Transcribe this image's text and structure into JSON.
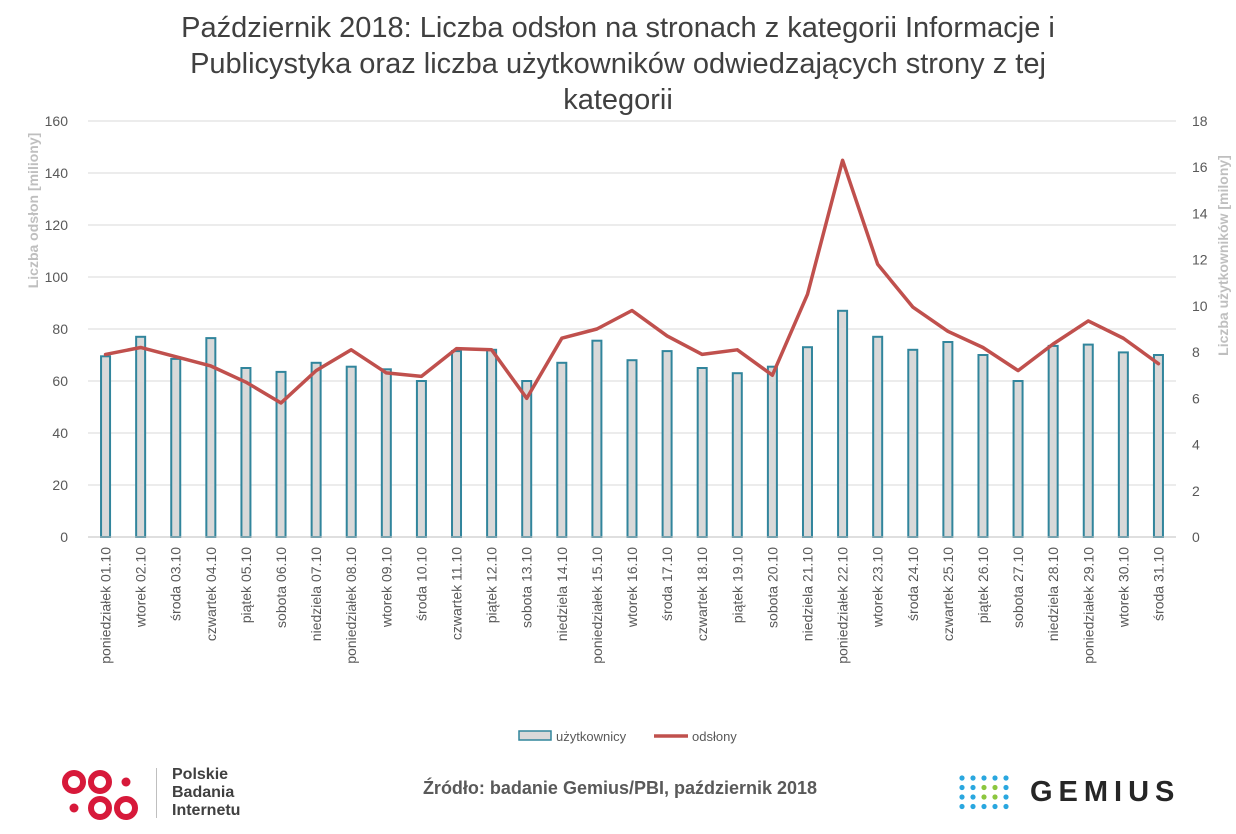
{
  "chart_data": {
    "type": "bar",
    "title": "Październik 2018: Liczba odsłon na stronach z kategorii Informacje i Publicystyka oraz liczba użytkowników odwiedzających strony z tej kategorii",
    "title_lines": [
      "Październik 2018: Liczba odsłon na stronach z kategorii Informacje i",
      "Publicystyka oraz liczba użytkowników odwiedzających strony z tej",
      "kategorii"
    ],
    "ylabel": "Liczba odsłon [miliony]",
    "y2label": "Liczba użytkowników [milony]",
    "ylim": [
      0,
      160
    ],
    "y2lim": [
      0,
      18
    ],
    "yticks": [
      "0",
      "20",
      "40",
      "60",
      "80",
      "100",
      "120",
      "140",
      "160"
    ],
    "y2ticks": [
      "0",
      "2",
      "4",
      "6",
      "8",
      "10",
      "12",
      "14",
      "16",
      "18"
    ],
    "grid": true,
    "legend_position": "bottom",
    "categories": [
      "poniedziałek 01.10",
      "wtorek 02.10",
      "środa 03.10",
      "czwartek 04.10",
      "piątek 05.10",
      "sobota 06.10",
      "niedziela 07.10",
      "poniedziałek 08.10",
      "wtorek 09.10",
      "środa 10.10",
      "czwartek 11.10",
      "piątek 12.10",
      "sobota 13.10",
      "niedziela 14.10",
      "poniedziałek 15.10",
      "wtorek 16.10",
      "środa 17.10",
      "czwartek 18.10",
      "piątek 19.10",
      "sobota 20.10",
      "niedziela 21.10",
      "poniedziałek 22.10",
      "wtorek 23.10",
      "środa 24.10",
      "czwartek 25.10",
      "piątek 26.10",
      "sobota 27.10",
      "niedziela 28.10",
      "poniedziałek 29.10",
      "wtorek 30.10",
      "środa 31.10"
    ],
    "series": [
      {
        "name": "użytkownicy",
        "type": "bar",
        "axis": "left",
        "color": "#d9d9d9",
        "edge_color": "#31859c",
        "values": [
          69.5,
          77,
          68.5,
          76.5,
          65,
          63.5,
          67,
          65.5,
          64.5,
          60,
          71.5,
          72,
          60,
          67,
          75.5,
          68,
          71.5,
          65,
          63,
          65.5,
          73,
          87,
          77,
          72,
          75,
          70,
          60,
          73.5,
          74,
          71,
          70
        ]
      },
      {
        "name": "odsłony",
        "type": "line",
        "axis": "right",
        "color": "#c0504d",
        "values": [
          7.9,
          8.2,
          7.8,
          7.4,
          6.7,
          5.8,
          7.2,
          8.1,
          7.1,
          6.95,
          8.15,
          8.1,
          6.0,
          8.6,
          9.0,
          9.8,
          8.7,
          7.9,
          8.1,
          7.0,
          10.5,
          16.3,
          11.8,
          9.95,
          8.9,
          8.2,
          7.2,
          8.35,
          9.35,
          8.6,
          7.5
        ]
      }
    ]
  },
  "footer": {
    "source": "Źródło: badanie Gemius/PBI, październik 2018",
    "pbi_lines": [
      "Polskie",
      "Badania",
      "Internetu"
    ],
    "gemius_name": "GEMIUS"
  },
  "colors": {
    "pbi_red": "#d7193a",
    "gemius_blue": "#2aa7df",
    "gemius_green": "#8cc63f"
  }
}
